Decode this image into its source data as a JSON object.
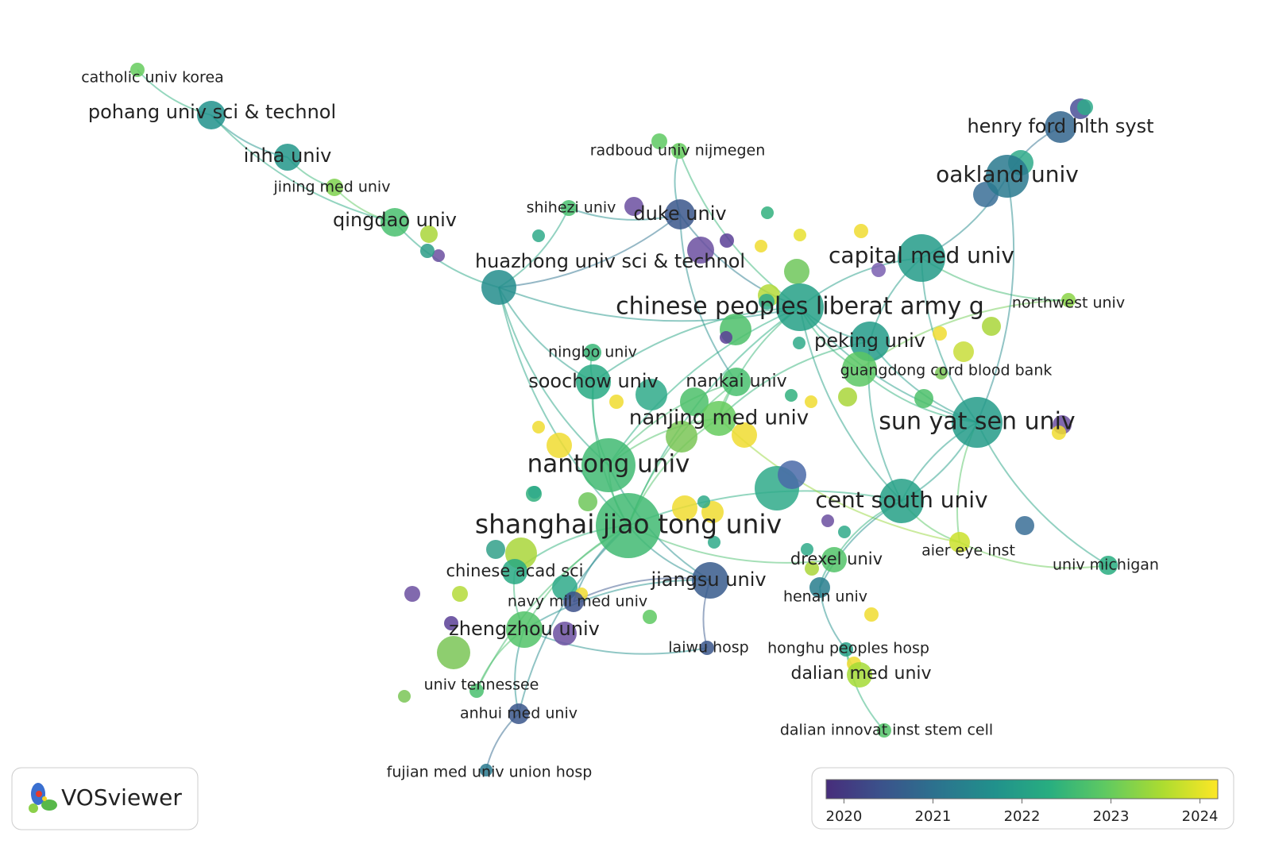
{
  "nodes": [
    {
      "label": "catholic univ korea",
      "year": 2023
    },
    {
      "label": "pohang univ sci & technol",
      "year": 2021.7
    },
    {
      "label": "inha univ",
      "year": 2021.8
    },
    {
      "label": "jining med univ",
      "year": 2023.2
    },
    {
      "label": "qingdao univ",
      "year": 2022.7
    },
    {
      "label": "huazhong univ sci & technol",
      "year": 2021.6
    },
    {
      "label": "radboud univ nijmegen",
      "year": 2023
    },
    {
      "label": "shihezi univ",
      "year": 2022.7
    },
    {
      "label": "duke univ",
      "year": 2020.5
    },
    {
      "label": "capital med univ",
      "year": 2021.9
    },
    {
      "label": "henry ford hlth syst",
      "year": 2020.8
    },
    {
      "label": "oakland univ",
      "year": 2021.2
    },
    {
      "label": "chinese peoples liberat army g",
      "year": 2022
    },
    {
      "label": "northwest univ",
      "year": 2023.3
    },
    {
      "label": "peking univ",
      "year": 2021.9
    },
    {
      "label": "guangdong cord blood bank",
      "year": 2022.9
    },
    {
      "label": "ningbo univ",
      "year": 2022.5
    },
    {
      "label": "soochow univ",
      "year": 2022.2
    },
    {
      "label": "nankai univ",
      "year": 2022.7
    },
    {
      "label": "nanjing med univ",
      "year": 2023
    },
    {
      "label": "sun yat sen univ",
      "year": 2021.9
    },
    {
      "label": "nantong univ",
      "year": 2022.6
    },
    {
      "label": "cent south univ",
      "year": 2022
    },
    {
      "label": "shanghai jiao tong univ",
      "year": 2022.6
    },
    {
      "label": "aier eye inst",
      "year": 2023.8
    },
    {
      "label": "univ michigan",
      "year": 2022.3
    },
    {
      "label": "drexel univ",
      "year": 2022.8
    },
    {
      "label": "chinese acad sci",
      "year": 2022.2
    },
    {
      "label": "jiangsu univ",
      "year": 2020.6
    },
    {
      "label": "navy mil med univ",
      "year": 2020.4
    },
    {
      "label": "henan univ",
      "year": 2021.3
    },
    {
      "label": "zhengzhou univ",
      "year": 2022.8
    },
    {
      "label": "laiwu hosp",
      "year": 2020.5
    },
    {
      "label": "honghu peoples hosp",
      "year": 2022
    },
    {
      "label": "dalian med univ",
      "year": 2023.5
    },
    {
      "label": "univ tennessee",
      "year": 2022.7
    },
    {
      "label": "anhui med univ",
      "year": 2020.5
    },
    {
      "label": "dalian innovat inst stem cell",
      "year": 2022.8
    },
    {
      "label": "fujian med univ union hosp",
      "year": 2021.2
    }
  ],
  "colorbar": {
    "range": [
      2019.8,
      2024.2
    ],
    "ticks": [
      2020,
      2021,
      2022,
      2023,
      2024
    ]
  },
  "logo": {
    "text": "VOSviewer"
  }
}
